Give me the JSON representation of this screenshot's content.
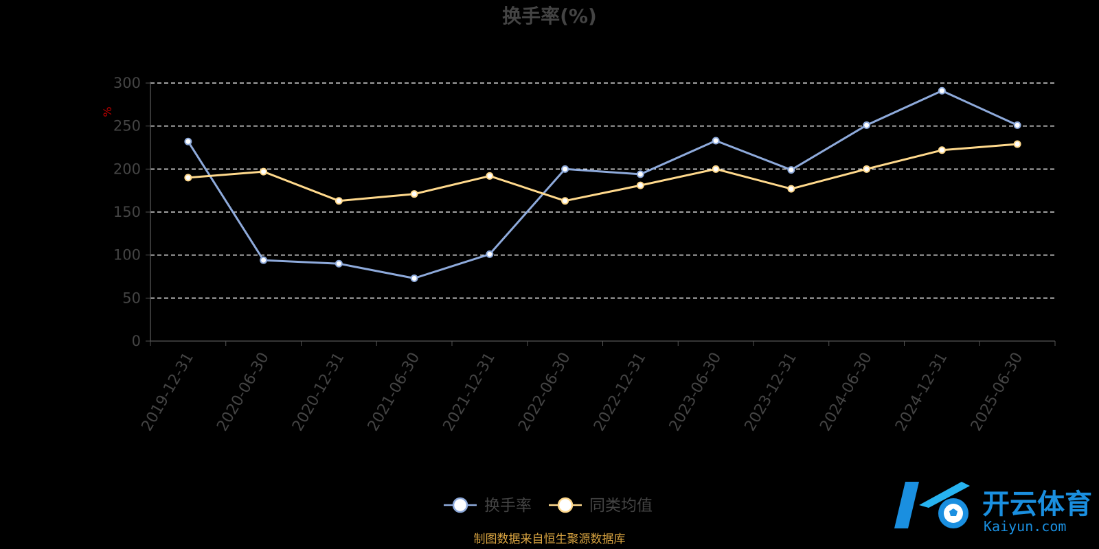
{
  "chart_data": {
    "type": "line",
    "title": "换手率(%)",
    "ylabel": "%",
    "ylim": [
      0,
      300
    ],
    "yticks": [
      0,
      50,
      100,
      150,
      200,
      250,
      300
    ],
    "grid": true,
    "legend_position": "bottom-center",
    "categories": [
      "2019-12-31",
      "2020-06-30",
      "2020-12-31",
      "2021-06-30",
      "2021-12-31",
      "2022-06-30",
      "2022-12-31",
      "2023-06-30",
      "2023-12-31",
      "2024-06-30",
      "2024-12-31",
      "2025-06-30"
    ],
    "series": [
      {
        "name": "换手率",
        "color": "#8eaadb",
        "values": [
          232,
          94,
          90,
          73,
          101,
          200,
          194,
          233,
          199,
          251,
          291,
          251
        ]
      },
      {
        "name": "同类均值",
        "color": "#ffd98c",
        "values": [
          190,
          197,
          163,
          171,
          192,
          163,
          181,
          200,
          177,
          200,
          222,
          229
        ]
      }
    ]
  },
  "source_note": "制图数据来自恒生聚源数据库",
  "watermark": {
    "name": "开云体育",
    "domain": "Kaiyun.com",
    "icon": "soccer-ball-k-logo-icon"
  }
}
